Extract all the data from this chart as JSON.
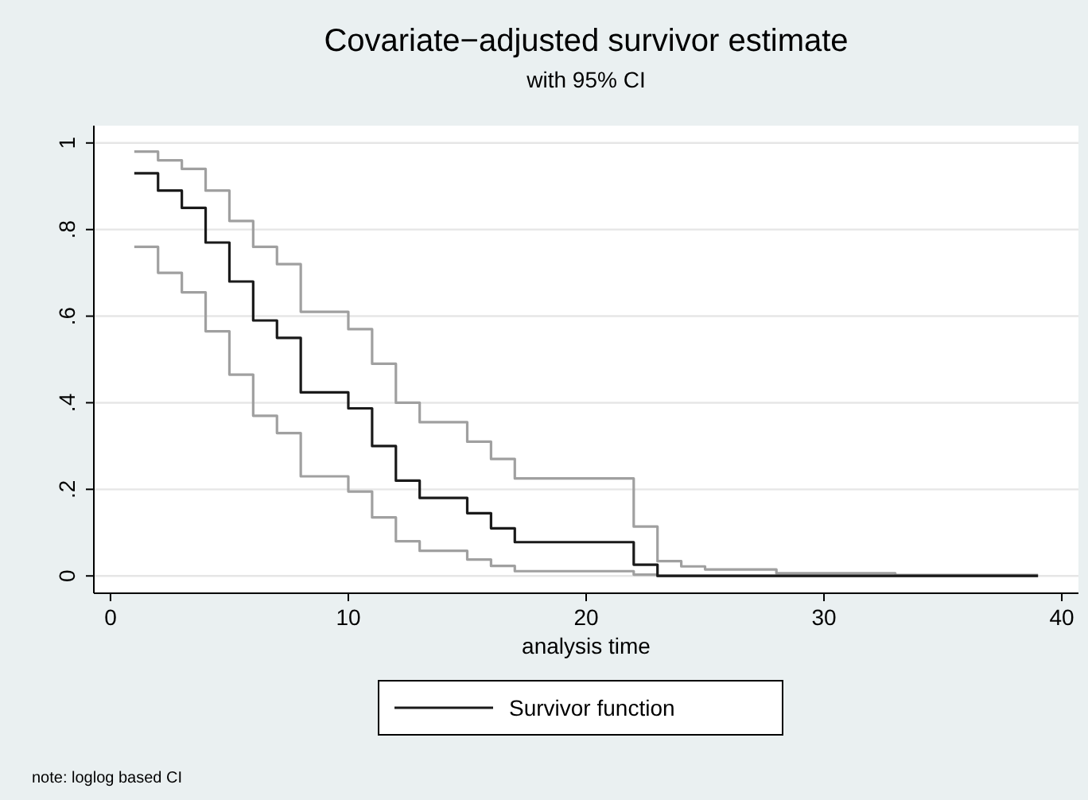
{
  "chart_data": {
    "type": "step",
    "title": "Covariate−adjusted survivor estimate",
    "subtitle": "with 95% CI",
    "xlabel": "analysis time",
    "annotations": [
      "note: loglog based CI"
    ],
    "xlim": [
      -0.7,
      40.7
    ],
    "xticks": [
      0,
      10,
      20,
      30,
      40
    ],
    "ylim": [
      -0.04,
      1.04
    ],
    "yticks": [
      {
        "value": 0,
        "label": "0"
      },
      {
        "value": 0.2,
        "label": ".2"
      },
      {
        "value": 0.4,
        "label": ".4"
      },
      {
        "value": 0.6,
        "label": ".6"
      },
      {
        "value": 0.8,
        "label": ".8"
      },
      {
        "value": 1,
        "label": "1"
      }
    ],
    "grid": "y",
    "legend": "bottom",
    "series": [
      {
        "color": "#a0a0a0",
        "x": [
          1,
          2,
          3,
          4,
          5,
          6,
          7,
          8,
          10,
          11,
          12,
          13,
          15,
          16,
          17,
          22,
          23,
          24,
          25,
          28,
          33,
          39
        ],
        "values": [
          0.98,
          0.96,
          0.94,
          0.89,
          0.82,
          0.76,
          0.72,
          0.61,
          0.57,
          0.49,
          0.4,
          0.355,
          0.31,
          0.27,
          0.225,
          0.114,
          0.034,
          0.022,
          0.015,
          0.006,
          0.002,
          0.002
        ]
      },
      {
        "color": "#a0a0a0",
        "x": [
          1,
          2,
          3,
          4,
          5,
          6,
          7,
          8,
          10,
          11,
          12,
          13,
          15,
          16,
          17,
          22,
          23,
          39
        ],
        "values": [
          0.76,
          0.7,
          0.655,
          0.565,
          0.465,
          0.37,
          0.33,
          0.23,
          0.195,
          0.135,
          0.08,
          0.058,
          0.038,
          0.023,
          0.011,
          0.003,
          0,
          0
        ]
      },
      {
        "name": "Survivor function",
        "color": "#1a1a1a",
        "x": [
          1,
          2,
          3,
          4,
          5,
          6,
          7,
          8,
          10,
          11,
          12,
          13,
          15,
          16,
          17,
          22,
          23,
          39
        ],
        "values": [
          0.93,
          0.89,
          0.85,
          0.77,
          0.68,
          0.59,
          0.55,
          0.424,
          0.387,
          0.3,
          0.22,
          0.18,
          0.145,
          0.11,
          0.078,
          0.026,
          0,
          0
        ]
      }
    ]
  }
}
